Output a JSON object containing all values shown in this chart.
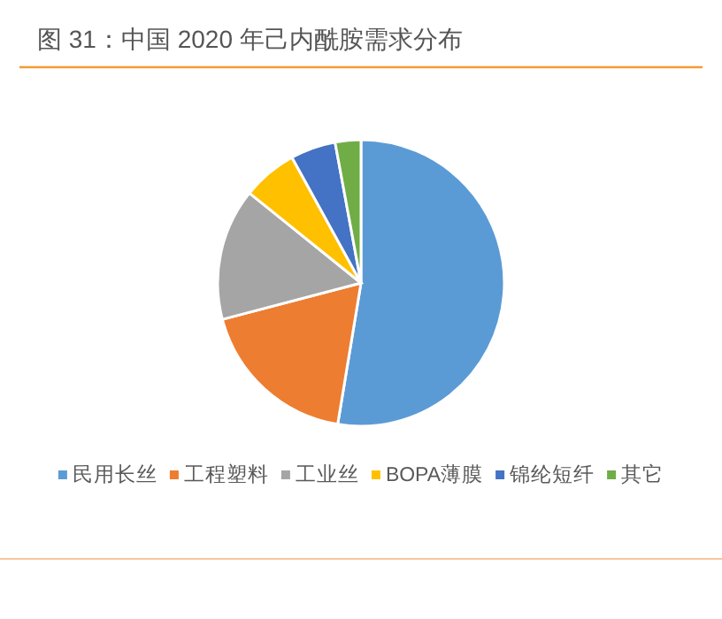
{
  "chart_data": {
    "type": "pie",
    "title": "图 31：中国 2020 年己内酰胺需求分布",
    "categories": [
      "民用长丝",
      "工程塑料",
      "工业丝",
      "BOPA薄膜",
      "锦纶短纤",
      "其它"
    ],
    "values": [
      52.6,
      18.3,
      14.9,
      6.2,
      5.1,
      2.9
    ],
    "colors": [
      "#5b9bd5",
      "#ed7d31",
      "#a5a5a5",
      "#ffc000",
      "#4472c4",
      "#70ad47"
    ],
    "legend": "bottom"
  }
}
